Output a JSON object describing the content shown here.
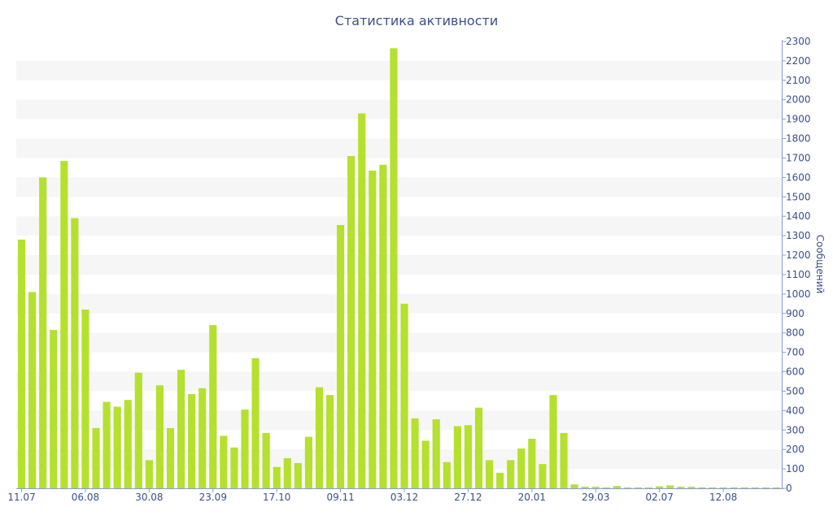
{
  "colors": {
    "bar": "#b5e02e",
    "text": "#3a4f8c",
    "axis": "#8a9bd0",
    "band": "#f6f6f6"
  },
  "chart_data": {
    "type": "bar",
    "title": "Статистика активности",
    "xlabel": "",
    "ylabel": "Сообщений",
    "ylim": [
      0,
      2300
    ],
    "ytick_step": 100,
    "x_ticks": [
      {
        "index": 0,
        "label": "11.07"
      },
      {
        "index": 6,
        "label": "06.08"
      },
      {
        "index": 12,
        "label": "30.08"
      },
      {
        "index": 18,
        "label": "23.09"
      },
      {
        "index": 24,
        "label": "17.10"
      },
      {
        "index": 30,
        "label": "09.11"
      },
      {
        "index": 36,
        "label": "03.12"
      },
      {
        "index": 42,
        "label": "27.12"
      },
      {
        "index": 48,
        "label": "20.01"
      },
      {
        "index": 54,
        "label": "29.03"
      },
      {
        "index": 60,
        "label": "02.07"
      },
      {
        "index": 66,
        "label": "12.08"
      }
    ],
    "values": [
      1280,
      1010,
      1600,
      815,
      1685,
      1390,
      920,
      310,
      445,
      420,
      455,
      595,
      145,
      530,
      310,
      610,
      485,
      515,
      840,
      270,
      210,
      405,
      670,
      285,
      110,
      155,
      130,
      265,
      520,
      480,
      1355,
      1710,
      1930,
      1635,
      1665,
      2265,
      950,
      360,
      245,
      355,
      135,
      320,
      325,
      415,
      145,
      80,
      145,
      205,
      255,
      125,
      480,
      285,
      20,
      8,
      8,
      5,
      12,
      5,
      5,
      5,
      10,
      15,
      8,
      8,
      5,
      5,
      5,
      5,
      5,
      5,
      5,
      5
    ],
    "grid": "alternating horizontal bands",
    "y_axis_side": "right"
  }
}
